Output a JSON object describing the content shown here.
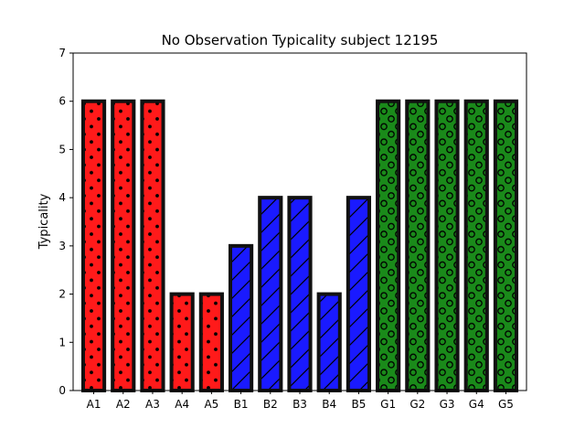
{
  "chart_data": {
    "type": "bar",
    "title": "No Observation Typicality subject 12195",
    "xlabel": "",
    "ylabel": "Typicality",
    "ylim": [
      0,
      7
    ],
    "yticks": [
      0,
      1,
      2,
      3,
      4,
      5,
      6,
      7
    ],
    "grid": false,
    "legend": "none",
    "categories": [
      "A1",
      "A2",
      "A3",
      "A4",
      "A5",
      "B1",
      "B2",
      "B3",
      "B4",
      "B5",
      "G1",
      "G2",
      "G3",
      "G4",
      "G5"
    ],
    "values": [
      6,
      6,
      6,
      2,
      2,
      3,
      4,
      4,
      2,
      4,
      6,
      6,
      6,
      6,
      6
    ],
    "groups": [
      {
        "prefix": "A",
        "color": "#ff1a1a",
        "hatch": "dots"
      },
      {
        "prefix": "B",
        "color": "#1a1aff",
        "hatch": "diagonal"
      },
      {
        "prefix": "G",
        "color": "#1a8a1a",
        "hatch": "circles"
      }
    ],
    "bar_edge_color": "#111111"
  }
}
